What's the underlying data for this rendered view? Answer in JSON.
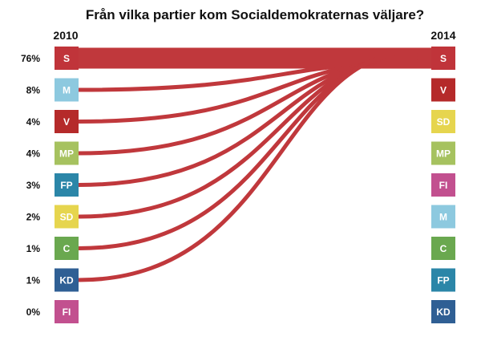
{
  "chart_data": {
    "type": "flow",
    "title": "Från vilka partier kom Socialdemokraternas väljare?",
    "left_year": "2010",
    "right_year": "2014",
    "target": "S",
    "colors": {
      "S": "#c0343a",
      "M": "#8dc9df",
      "V": "#b52a2a",
      "MP": "#a6c25f",
      "FP": "#2b86a8",
      "SD": "#e6d54e",
      "C": "#6aa84f",
      "KD": "#2f5f94",
      "FI": "#c2508f",
      "flow": "#c0383c"
    },
    "sources_2010": [
      {
        "party": "S",
        "share": "76%",
        "value": 76
      },
      {
        "party": "M",
        "share": "8%",
        "value": 8
      },
      {
        "party": "V",
        "share": "4%",
        "value": 4
      },
      {
        "party": "MP",
        "share": "4%",
        "value": 4
      },
      {
        "party": "FP",
        "share": "3%",
        "value": 3
      },
      {
        "party": "SD",
        "share": "2%",
        "value": 2
      },
      {
        "party": "C",
        "share": "1%",
        "value": 1
      },
      {
        "party": "KD",
        "share": "1%",
        "value": 1
      },
      {
        "party": "FI",
        "share": "0%",
        "value": 0
      }
    ],
    "parties_2014": [
      "S",
      "V",
      "SD",
      "MP",
      "FI",
      "M",
      "C",
      "FP",
      "KD"
    ]
  }
}
